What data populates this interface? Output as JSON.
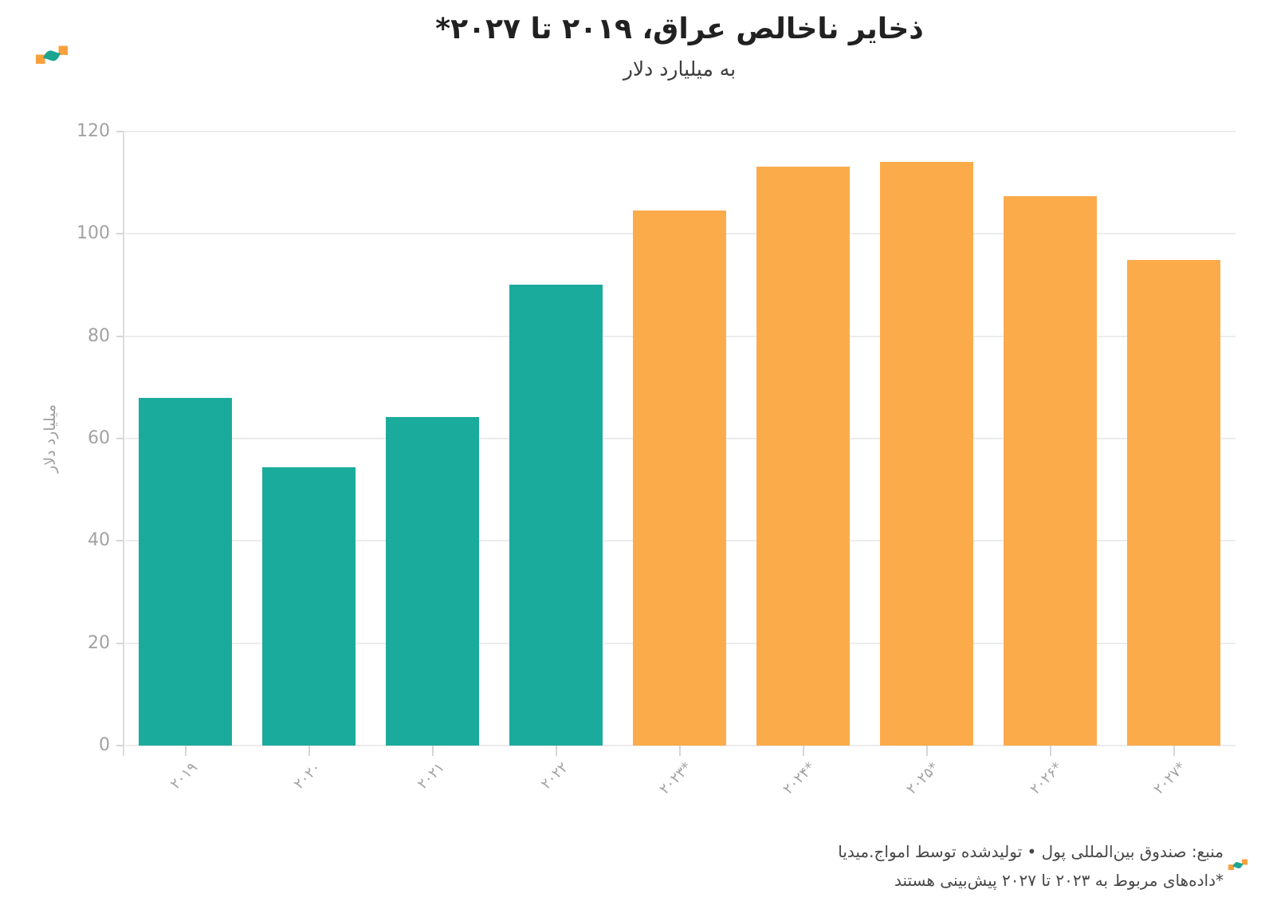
{
  "header": {
    "brand": "amwaj-media-logo"
  },
  "chart_data": {
    "type": "bar",
    "title": "ذخایر ناخالص عراق، ۲۰۱۹ تا ۲۰۲۷*",
    "subtitle": "به میلیارد دلار",
    "ylabel": "میلیارد دلار",
    "categories": [
      "۲۰۱۹",
      "۲۰۲۰",
      "۲۰۲۱",
      "۲۰۲۲",
      "۲۰۲۳*",
      "۲۰۲۴*",
      "۲۰۲۵*",
      "۲۰۲۶*",
      "۲۰۲۷*"
    ],
    "values": [
      68,
      54.4,
      64.2,
      90.1,
      104.6,
      113.1,
      114.1,
      107.4,
      94.9
    ],
    "bar_colors": [
      "#1BAB9C",
      "#1BAB9C",
      "#1BAB9C",
      "#1BAB9C",
      "#FCAB4B",
      "#FCAB4B",
      "#FCAB4B",
      "#FCAB4B",
      "#FCAB4B"
    ],
    "color_legend": {
      "actual": "#1BAB9C",
      "forecast": "#FCAB4B"
    },
    "yticks": [
      0,
      20,
      40,
      60,
      80,
      100,
      120
    ],
    "ylim": [
      0,
      120
    ],
    "grid": true,
    "x_tick_rotation": -45,
    "legend_position": "none"
  },
  "footer": {
    "source_line": "منبع: صندوق بین‌المللی پول • تولیدشده توسط امواج.میدیا",
    "note_line": "*داده‌های مربوط به ۲۰۲۳ تا ۲۰۲۷ پیش‌بینی هستند"
  },
  "branding": {
    "logo_orange": "#F9A03C",
    "logo_teal": "#19A591"
  }
}
